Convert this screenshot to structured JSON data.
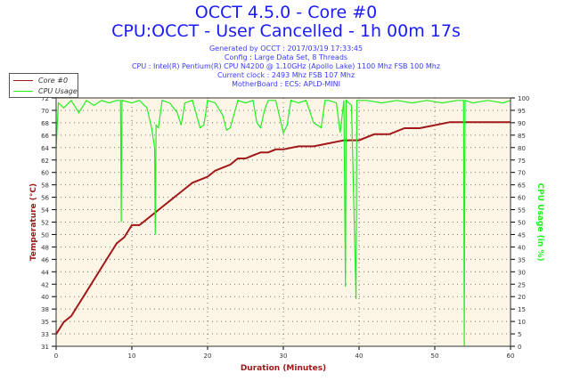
{
  "header": {
    "title": "OCCT 4.5.0 - Core #0",
    "subtitle": "CPU:OCCT - User Cancelled - 1h 00m 17s",
    "info": [
      "Generated by OCCT : 2017/03/19 17:33:45",
      "Config : Large Data Set, 8 Threads",
      "CPU : Intel(R) Pentium(R) CPU N4200 @ 1.10GHz (Apollo Lake) 1100 Mhz FSB 100 Mhz",
      "Current clock : 2493 Mhz FSB 107 Mhz",
      "MotherBoard : ECS: APLD-MINI"
    ]
  },
  "colors": {
    "temp": "#a01818",
    "cpu": "#22ee22",
    "bg": "#fdf6e6",
    "title": "#1a1aff"
  },
  "chart_data": {
    "type": "line",
    "xlabel": "Duration (Minutes)",
    "ylabel": "Temperature (°C)",
    "y2label": "CPU Usage (in %)",
    "xlim": [
      0,
      60
    ],
    "ylim": [
      31,
      72
    ],
    "y2lim": [
      0,
      100
    ],
    "xticks": [
      "0",
      "10",
      "20",
      "30",
      "40",
      "50",
      "60"
    ],
    "yticks": [
      "72",
      "70",
      "68",
      "66",
      "64",
      "62",
      "60",
      "58",
      "56",
      "54",
      "52",
      "50",
      "48",
      "46",
      "44",
      "42",
      "40",
      "38",
      "35",
      "33",
      "31"
    ],
    "y2ticks": [
      "100",
      "95",
      "90",
      "85",
      "80",
      "75",
      "70",
      "65",
      "60",
      "55",
      "50",
      "45",
      "40",
      "35",
      "30",
      "25",
      "20",
      "15",
      "10",
      "5",
      "0"
    ],
    "grid": true,
    "legend": {
      "position": "top-left",
      "entries": [
        "Core #0",
        "CPU Usage"
      ]
    },
    "series": [
      {
        "name": "Core #0",
        "axis": "left",
        "points": [
          [
            0,
            33
          ],
          [
            0.5,
            34
          ],
          [
            1,
            35
          ],
          [
            2,
            36
          ],
          [
            3,
            38
          ],
          [
            4,
            40
          ],
          [
            5,
            42
          ],
          [
            6,
            44
          ],
          [
            7,
            46
          ],
          [
            8,
            48
          ],
          [
            9,
            49
          ],
          [
            10,
            51
          ],
          [
            11,
            51
          ],
          [
            12,
            52
          ],
          [
            13,
            53
          ],
          [
            14,
            54
          ],
          [
            15,
            55
          ],
          [
            16,
            56
          ],
          [
            17,
            57
          ],
          [
            18,
            58
          ],
          [
            19,
            58.5
          ],
          [
            20,
            59
          ],
          [
            21,
            60
          ],
          [
            22,
            60.5
          ],
          [
            23,
            61
          ],
          [
            24,
            62
          ],
          [
            25,
            62
          ],
          [
            26,
            62.5
          ],
          [
            27,
            63
          ],
          [
            28,
            63
          ],
          [
            29,
            63.5
          ],
          [
            30,
            63.5
          ],
          [
            32,
            64
          ],
          [
            34,
            64
          ],
          [
            36,
            64.5
          ],
          [
            38,
            65
          ],
          [
            40,
            65
          ],
          [
            42,
            66
          ],
          [
            44,
            66
          ],
          [
            46,
            67
          ],
          [
            48,
            67
          ],
          [
            50,
            67.5
          ],
          [
            52,
            68
          ],
          [
            54,
            68
          ],
          [
            56,
            68
          ],
          [
            58,
            68
          ],
          [
            60,
            68
          ]
        ]
      },
      {
        "name": "CPU Usage",
        "axis": "right",
        "points": [
          [
            0,
            80
          ],
          [
            0.3,
            98
          ],
          [
            1,
            96
          ],
          [
            2,
            99
          ],
          [
            3,
            94
          ],
          [
            4,
            99
          ],
          [
            5,
            97
          ],
          [
            6,
            99
          ],
          [
            7,
            98
          ],
          [
            8,
            99
          ],
          [
            8.5,
            99
          ],
          [
            8.6,
            50
          ],
          [
            8.7,
            99
          ],
          [
            10,
            98
          ],
          [
            11,
            99
          ],
          [
            12,
            96
          ],
          [
            12.6,
            88
          ],
          [
            13,
            80
          ],
          [
            13.1,
            45
          ],
          [
            13.2,
            89
          ],
          [
            13.5,
            88
          ],
          [
            14,
            99
          ],
          [
            15,
            98
          ],
          [
            16,
            94
          ],
          [
            16.5,
            89
          ],
          [
            17,
            98
          ],
          [
            18,
            99
          ],
          [
            19,
            88
          ],
          [
            19.5,
            89
          ],
          [
            20,
            99
          ],
          [
            21,
            98
          ],
          [
            22,
            93
          ],
          [
            22.5,
            87
          ],
          [
            23,
            88
          ],
          [
            24,
            99
          ],
          [
            25,
            98
          ],
          [
            26,
            99
          ],
          [
            26.5,
            90
          ],
          [
            27,
            88
          ],
          [
            27.5,
            95
          ],
          [
            28,
            99
          ],
          [
            29,
            99
          ],
          [
            30,
            86
          ],
          [
            30.5,
            89
          ],
          [
            31,
            99
          ],
          [
            32,
            98
          ],
          [
            33,
            99
          ],
          [
            34,
            90
          ],
          [
            35,
            88
          ],
          [
            35.5,
            99
          ],
          [
            36,
            99
          ],
          [
            37,
            98
          ],
          [
            37.5,
            86
          ],
          [
            38,
            99
          ],
          [
            38.2,
            24
          ],
          [
            38.3,
            99
          ],
          [
            39,
            97
          ],
          [
            39.6,
            19
          ],
          [
            39.7,
            99
          ],
          [
            41,
            99
          ],
          [
            43,
            98
          ],
          [
            45,
            99
          ],
          [
            47,
            98
          ],
          [
            49,
            99
          ],
          [
            51,
            98
          ],
          [
            53,
            99
          ],
          [
            53.8,
            99
          ],
          [
            53.9,
            0
          ],
          [
            54,
            99
          ],
          [
            55,
            98
          ],
          [
            57,
            99
          ],
          [
            59,
            98
          ],
          [
            60,
            99
          ]
        ]
      }
    ]
  }
}
